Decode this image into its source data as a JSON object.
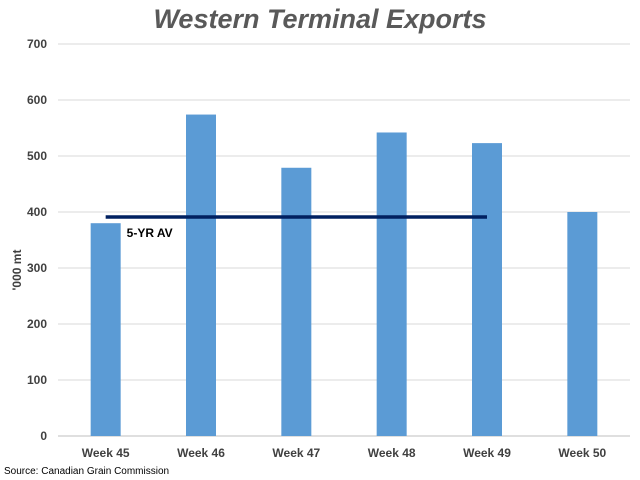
{
  "chart_data": {
    "type": "bar",
    "title": "Western Terminal Exports",
    "ylabel": "'000 mt",
    "xlabel": "",
    "categories": [
      "Week 45",
      "Week 46",
      "Week 47",
      "Week 48",
      "Week 49",
      "Week 50"
    ],
    "values": [
      380,
      574,
      479,
      542,
      523,
      400
    ],
    "ylim": [
      0,
      700
    ],
    "yticks": [
      0,
      100,
      200,
      300,
      400,
      500,
      600,
      700
    ],
    "grid": true,
    "bar_color": "#5b9bd5",
    "reference_line": {
      "label": "5-YR AV",
      "value": 391,
      "from_category": "Week 45",
      "to_category": "Week 49",
      "color": "#002060"
    }
  },
  "source": "Source: Canadian Grain Commission"
}
